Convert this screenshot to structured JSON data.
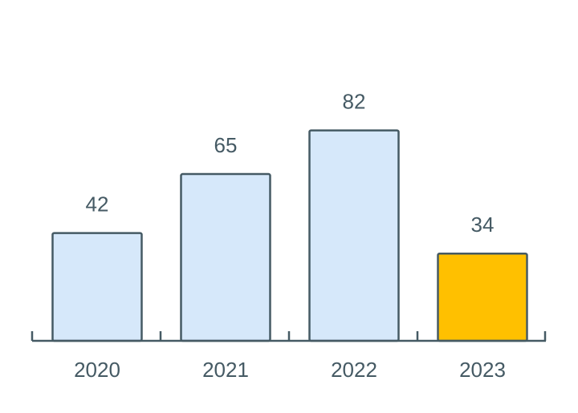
{
  "chart_data": {
    "type": "bar",
    "categories": [
      "2020",
      "2021",
      "2022",
      "2023"
    ],
    "values": [
      42,
      65,
      82,
      34
    ],
    "colors": [
      "#d6e8fa",
      "#d6e8fa",
      "#d6e8fa",
      "#ffc000"
    ],
    "stroke": "#455a64"
  }
}
